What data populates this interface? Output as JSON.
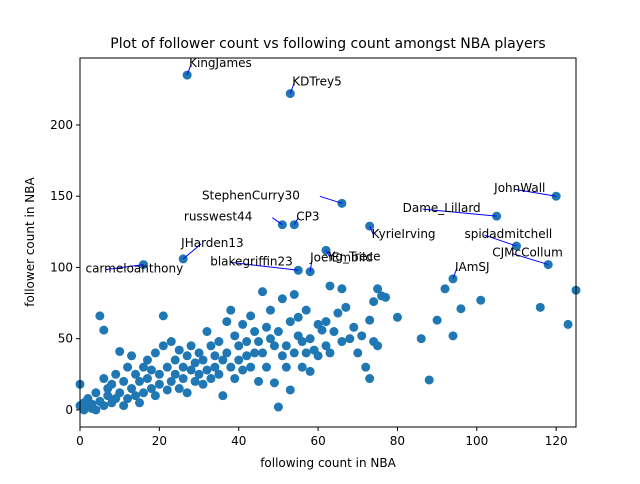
{
  "chart_data": {
    "type": "scatter",
    "title": "Plot of follower count vs following count amongst NBA players",
    "x_label": "following count in NBA",
    "y_label": "follower count in NBA",
    "xlim": [
      0,
      125
    ],
    "ylim": [
      -12,
      247
    ],
    "xticks": [
      0,
      20,
      40,
      60,
      80,
      100,
      120
    ],
    "yticks": [
      0,
      50,
      100,
      150,
      200
    ],
    "color": "#1f77b4",
    "arrow_color": "#0000ff",
    "x": [
      0,
      0,
      1,
      1,
      2,
      2,
      3,
      3,
      4,
      4,
      5,
      5,
      6,
      6,
      6,
      7,
      7,
      8,
      8,
      9,
      9,
      10,
      10,
      11,
      11,
      12,
      12,
      13,
      13,
      14,
      14,
      15,
      15,
      16,
      16,
      17,
      17,
      18,
      18,
      19,
      19,
      20,
      20,
      21,
      21,
      22,
      22,
      23,
      23,
      24,
      24,
      25,
      25,
      26,
      26,
      27,
      27,
      28,
      28,
      29,
      29,
      30,
      30,
      31,
      31,
      32,
      32,
      33,
      33,
      34,
      34,
      35,
      35,
      36,
      36,
      37,
      37,
      38,
      38,
      39,
      39,
      40,
      40,
      41,
      41,
      42,
      42,
      43,
      43,
      44,
      44,
      45,
      45,
      46,
      46,
      47,
      47,
      48,
      48,
      49,
      49,
      50,
      50,
      51,
      51,
      52,
      52,
      53,
      53,
      54,
      54,
      55,
      55,
      56,
      56,
      57,
      57,
      58,
      58,
      59,
      60,
      60,
      61,
      62,
      62,
      63,
      63,
      64,
      65,
      66,
      66,
      67,
      68,
      69,
      70,
      71,
      72,
      73,
      73,
      74,
      74,
      75,
      75,
      76,
      77,
      80,
      86,
      88,
      90,
      92,
      94,
      96,
      101,
      116,
      123,
      125
    ],
    "y": [
      18,
      3,
      0,
      5,
      2,
      8,
      1,
      4,
      0,
      12,
      66,
      6,
      56,
      22,
      3,
      10,
      15,
      5,
      18,
      8,
      25,
      41,
      12,
      3,
      20,
      30,
      8,
      15,
      38,
      10,
      25,
      20,
      5,
      30,
      12,
      22,
      35,
      15,
      28,
      40,
      10,
      25,
      18,
      66,
      45,
      30,
      14,
      48,
      20,
      35,
      25,
      42,
      15,
      30,
      22,
      38,
      12,
      28,
      45,
      20,
      33,
      25,
      40,
      35,
      18,
      55,
      28,
      22,
      45,
      38,
      30,
      48,
      25,
      10,
      35,
      62,
      40,
      30,
      70,
      22,
      52,
      45,
      35,
      28,
      60,
      38,
      48,
      66,
      30,
      40,
      55,
      20,
      48,
      83,
      40,
      58,
      30,
      50,
      70,
      19,
      45,
      2,
      55,
      38,
      78,
      45,
      30,
      14,
      62,
      81,
      40,
      52,
      65,
      30,
      48,
      70,
      40,
      27,
      50,
      42,
      60,
      38,
      56,
      62,
      45,
      40,
      87,
      55,
      68,
      48,
      85,
      72,
      50,
      58,
      40,
      52,
      30,
      22,
      63,
      76,
      48,
      85,
      45,
      80,
      79,
      65,
      50,
      21,
      63,
      85,
      52,
      71,
      77,
      72,
      60,
      84
    ],
    "annotations": [
      {
        "text": "KingJames",
        "x": 27,
        "y": 235
      },
      {
        "text": "KDTrey5",
        "x": 53,
        "y": 222
      },
      {
        "text": "StephenCurry30",
        "x": 66,
        "y": 145
      },
      {
        "text": "russwest44",
        "x": 51,
        "y": 130
      },
      {
        "text": "CP3",
        "x": 54,
        "y": 130
      },
      {
        "text": "KyrieIrving",
        "x": 73,
        "y": 129
      },
      {
        "text": "JohnWall",
        "x": 120,
        "y": 150
      },
      {
        "text": "Dame_Lillard",
        "x": 105,
        "y": 136
      },
      {
        "text": "spidadmitchell",
        "x": 110,
        "y": 115
      },
      {
        "text": "CJMcCollum",
        "x": 118,
        "y": 102
      },
      {
        "text": "IAmSJ",
        "x": 94,
        "y": 92
      },
      {
        "text": "JHarden13",
        "x": 26,
        "y": 106
      },
      {
        "text": "carmeloanthony",
        "x": 16,
        "y": 102
      },
      {
        "text": "Yg_Trece",
        "x": 62,
        "y": 112
      },
      {
        "text": "JoelEmbiid",
        "x": 58,
        "y": 97
      },
      {
        "text": "blakegriffin23",
        "x": 55,
        "y": 98
      }
    ]
  }
}
